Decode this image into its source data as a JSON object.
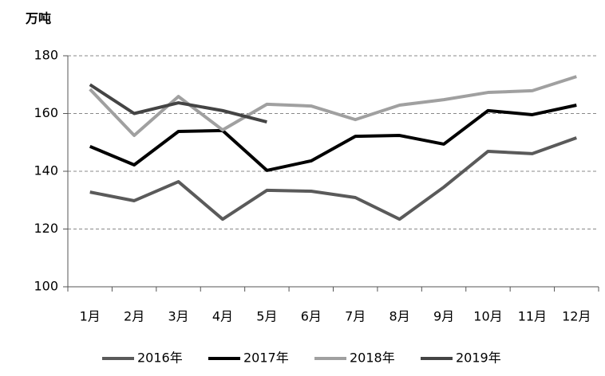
{
  "chart_data": {
    "type": "line",
    "y_label": "万吨",
    "categories": [
      "1月",
      "2月",
      "3月",
      "4月",
      "5月",
      "6月",
      "7月",
      "8月",
      "9月",
      "10月",
      "11月",
      "12月"
    ],
    "series": [
      {
        "name": "2016年",
        "color": "#5a5a5a",
        "values": [
          132.8,
          129.8,
          136.4,
          123.4,
          133.4,
          133.1,
          130.9,
          123.4,
          134.5,
          146.9,
          146.1,
          151.6
        ]
      },
      {
        "name": "2017年",
        "color": "#000000",
        "values": [
          148.6,
          142.2,
          153.8,
          154.1,
          140.3,
          143.6,
          152.1,
          152.4,
          149.4,
          161,
          159.6,
          162.9
        ]
      },
      {
        "name": "2018年",
        "color": "#a0a0a0",
        "values": [
          168.4,
          152.4,
          165.9,
          154.3,
          163.2,
          162.6,
          157.9,
          162.9,
          164.8,
          167.3,
          167.9,
          172.8
        ]
      },
      {
        "name": "2019年",
        "color": "#444444",
        "values": [
          170,
          160,
          163.7,
          161,
          157.1,
          null,
          null,
          null,
          null,
          null,
          null,
          null
        ]
      }
    ],
    "ylim": [
      100,
      180
    ],
    "yticks": [
      100,
      120,
      140,
      160,
      180
    ],
    "grid": true
  }
}
